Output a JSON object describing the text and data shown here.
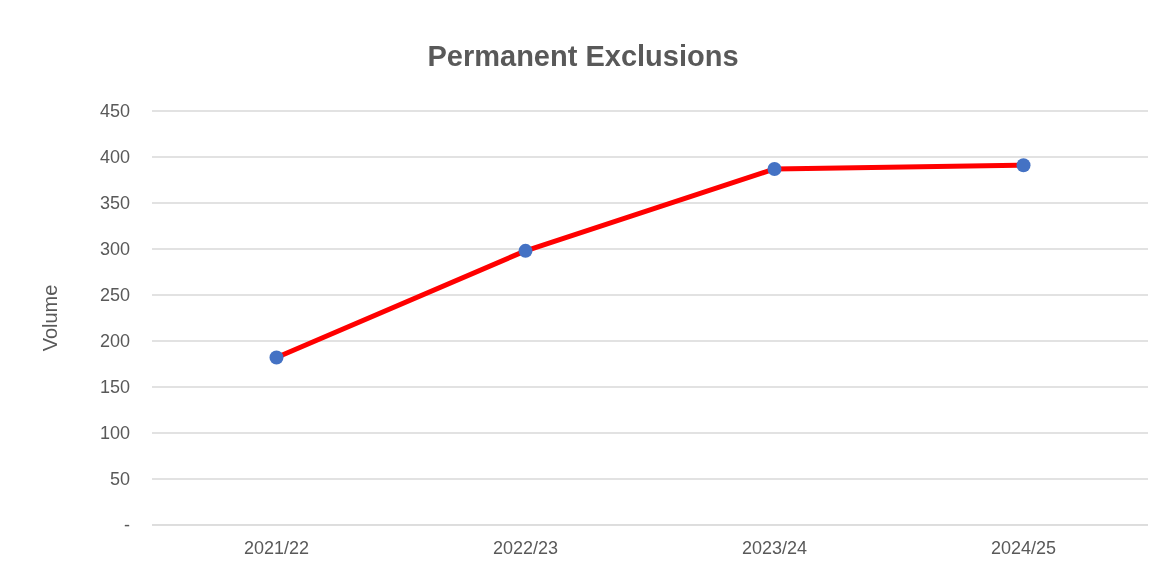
{
  "chart_data": {
    "type": "line",
    "title": "Permanent Exclusions",
    "ylabel": "Volume",
    "categories": [
      "2021/22",
      "2022/23",
      "2023/24",
      "2024/25"
    ],
    "series": [
      {
        "color": "#ff0000",
        "colors": [
          "#4472c4",
          "#4472c4",
          "#4472c4",
          "#4472c4"
        ],
        "values": [
          182,
          298,
          387,
          391
        ]
      }
    ],
    "ylim": [
      0,
      450
    ],
    "yticks": [
      {
        "value": 0,
        "label": "-"
      },
      50,
      100,
      150,
      200,
      250,
      300,
      350,
      400,
      450
    ],
    "grid": "y",
    "legend": false,
    "marker": "circle",
    "line_style": "solid"
  }
}
